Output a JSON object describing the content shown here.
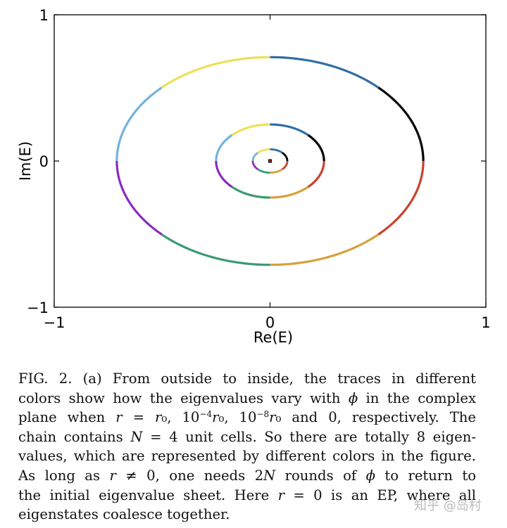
{
  "chart_data": {
    "type": "line",
    "xlabel": "Re(E)",
    "ylabel": "Im(E)",
    "xlim": [
      -1,
      1
    ],
    "ylim": [
      -1,
      1
    ],
    "x_ticks": [
      {
        "value": -1,
        "label": "−1"
      },
      {
        "value": 0,
        "label": "0"
      },
      {
        "value": 1,
        "label": "1"
      }
    ],
    "y_ticks": [
      {
        "value": -1,
        "label": "−1"
      },
      {
        "value": 0,
        "label": "0"
      },
      {
        "value": 1,
        "label": "1"
      }
    ],
    "grid": false,
    "legend": "none",
    "segment_colors": [
      "#2f6fa5",
      "#000000",
      "#c8432d",
      "#d6a13a",
      "#3a9a73",
      "#8a2cc0",
      "#74b2dc",
      "#ece05a"
    ],
    "traces": [
      {
        "center": [
          0,
          0
        ],
        "rx": 0.71,
        "ry": 0.71
      },
      {
        "center": [
          0,
          0
        ],
        "rx": 0.25,
        "ry": 0.25
      },
      {
        "center": [
          0,
          0
        ],
        "rx": 0.08,
        "ry": 0.08
      }
    ],
    "points": [
      {
        "x": 0.0,
        "y": 0.0,
        "color": "#c8432d"
      }
    ]
  },
  "caption": {
    "lines": [
      [
        "FIG. 2.  (a) From outside to inside, the traces in different"
      ],
      [
        "colors show how the eigenvalues vary with ",
        {
          "i": "ϕ"
        },
        " in the complex"
      ],
      [
        "plane when ",
        {
          "i": "r"
        },
        " = ",
        {
          "i": "r"
        },
        "₀, 10",
        {
          "sup": "−4"
        },
        {
          "i": "r"
        },
        "₀, 10",
        {
          "sup": "−8"
        },
        {
          "i": "r"
        },
        "₀ and 0, respectively. The"
      ],
      [
        "chain contains ",
        {
          "i": "N"
        },
        " = 4 unit cells. So there are totally 8 eigen-"
      ],
      [
        "values, which are represented by different colors in the figure."
      ],
      [
        "As long as ",
        {
          "i": "r"
        },
        " ≠ 0, one needs 2",
        {
          "i": "N"
        },
        " rounds of ",
        {
          "i": "ϕ"
        },
        " to return to"
      ],
      [
        "the initial eigenvalue sheet. Here ",
        {
          "i": "r"
        },
        " = 0 is an EP, where all"
      ],
      [
        "eigenstates coalesce together."
      ]
    ]
  },
  "watermark": "知乎 @岛村"
}
